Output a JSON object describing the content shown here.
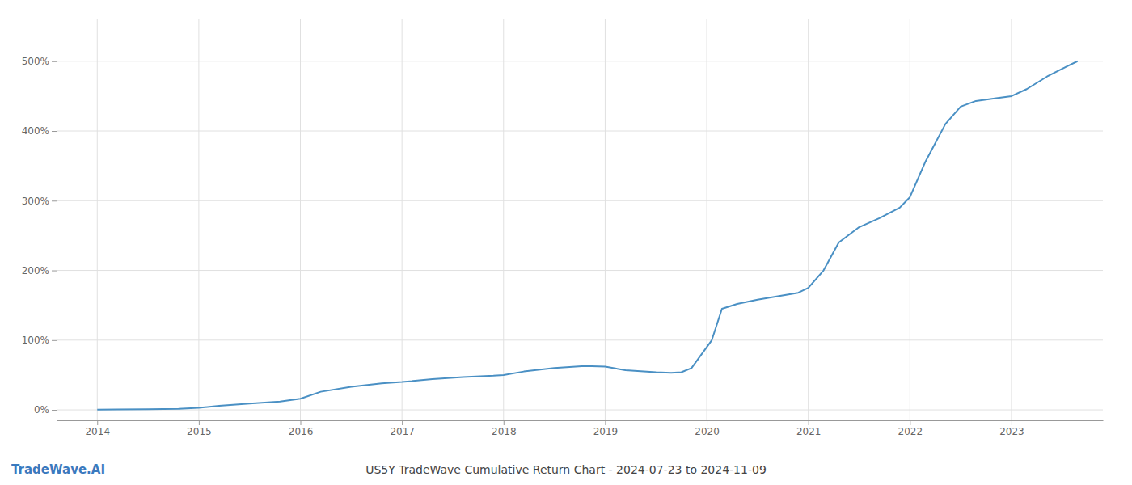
{
  "chart_data": {
    "type": "line",
    "title": "US5Y TradeWave Cumulative Return Chart - 2024-07-23 to 2024-11-09",
    "annotations": [
      "TradeWave.AI"
    ],
    "color": "#4a90c4",
    "grid": true,
    "x": [
      2014.0,
      2014.2,
      2014.5,
      2014.8,
      2015.0,
      2015.2,
      2015.5,
      2015.8,
      2016.0,
      2016.2,
      2016.5,
      2016.8,
      2017.0,
      2017.3,
      2017.6,
      2017.9,
      2018.0,
      2018.2,
      2018.5,
      2018.8,
      2019.0,
      2019.2,
      2019.5,
      2019.65,
      2019.75,
      2019.85,
      2019.95,
      2020.05,
      2020.15,
      2020.3,
      2020.5,
      2020.7,
      2020.9,
      2021.0,
      2021.15,
      2021.3,
      2021.5,
      2021.7,
      2021.9,
      2022.0,
      2022.15,
      2022.35,
      2022.5,
      2022.65,
      2022.85,
      2023.0,
      2023.15,
      2023.35,
      2023.55,
      2023.65
    ],
    "values": [
      0.5,
      0.7,
      1.0,
      1.5,
      3.0,
      6.0,
      9.0,
      12.0,
      16.0,
      26.0,
      33.0,
      38.0,
      40.0,
      44.0,
      47.0,
      49.0,
      50.0,
      55.0,
      60.0,
      63.0,
      62.0,
      57.0,
      54.0,
      53.0,
      54.0,
      60.0,
      80.0,
      100.0,
      145.0,
      152.0,
      158.0,
      163.0,
      168.0,
      175.0,
      200.0,
      240.0,
      262.0,
      275.0,
      290.0,
      305.0,
      355.0,
      410.0,
      435.0,
      443.0,
      447.0,
      450.0,
      460.0,
      478.0,
      493.0,
      500.0
    ],
    "xlim": [
      2013.6,
      2023.9
    ],
    "xticks": [
      2014,
      2015,
      2016,
      2017,
      2018,
      2019,
      2020,
      2021,
      2022,
      2023
    ],
    "ylim": [
      -15,
      560
    ],
    "yticks": [
      {
        "value": 0,
        "label": "0%"
      },
      {
        "value": 100,
        "label": "100%"
      },
      {
        "value": 200,
        "label": "200%"
      },
      {
        "value": 300,
        "label": "300%"
      },
      {
        "value": 400,
        "label": "400%"
      },
      {
        "value": 500,
        "label": "500%"
      }
    ]
  }
}
